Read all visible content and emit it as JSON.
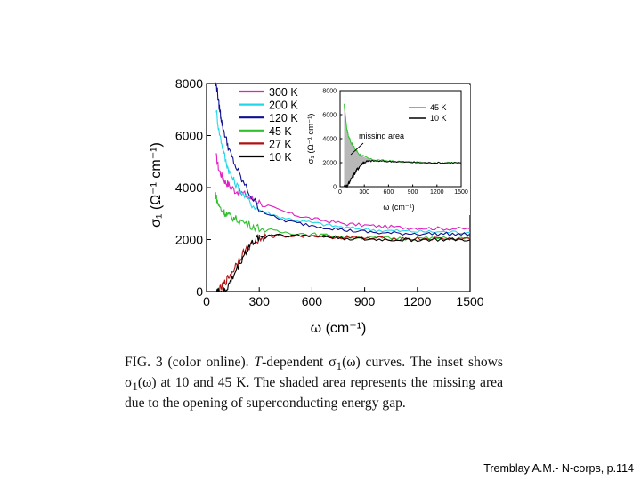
{
  "chart_data": [
    {
      "type": "line",
      "xlabel": "ω (cm⁻¹)",
      "ylabel": "σ₁ (Ω⁻¹ cm⁻¹)",
      "xlim": [
        0,
        1500
      ],
      "ylim": [
        0,
        8000
      ],
      "xticks": [
        0,
        300,
        600,
        900,
        1200,
        1500
      ],
      "yticks": [
        0,
        2000,
        4000,
        6000,
        8000
      ],
      "legend_position": "top-left inside",
      "series": [
        {
          "name": "300 K",
          "color": "#e020c0",
          "x": [
            55,
            70,
            90,
            110,
            130,
            160,
            200,
            250,
            300,
            400,
            500,
            600,
            700,
            800,
            900,
            1000,
            1100,
            1200,
            1300,
            1400,
            1500
          ],
          "y": [
            5200,
            4700,
            4400,
            4200,
            4100,
            3900,
            3800,
            3600,
            3450,
            3150,
            2950,
            2800,
            2700,
            2600,
            2550,
            2500,
            2470,
            2450,
            2430,
            2420,
            2410
          ]
        },
        {
          "name": "200 K",
          "color": "#20d8e8",
          "x": [
            55,
            70,
            90,
            110,
            130,
            160,
            200,
            250,
            300,
            400,
            500,
            600,
            700,
            800,
            900,
            1000,
            1100,
            1200,
            1300,
            1400,
            1500
          ],
          "y": [
            7000,
            6200,
            5600,
            5000,
            4600,
            4200,
            3800,
            3400,
            3150,
            2900,
            2750,
            2650,
            2550,
            2450,
            2400,
            2350,
            2330,
            2310,
            2300,
            2290,
            2280
          ]
        },
        {
          "name": "120 K",
          "color": "#101090",
          "x": [
            50,
            60,
            70,
            80,
            90,
            110,
            130,
            160,
            200,
            250,
            300,
            400,
            500,
            600,
            700,
            800,
            900,
            1000,
            1100,
            1200,
            1300,
            1400,
            1500
          ],
          "y": [
            8000,
            7800,
            7200,
            6800,
            6400,
            5900,
            5400,
            4900,
            4300,
            3700,
            3200,
            2800,
            2650,
            2550,
            2450,
            2350,
            2300,
            2250,
            2240,
            2230,
            2220,
            2210,
            2200
          ]
        },
        {
          "name": "45 K",
          "color": "#30c030",
          "x": [
            50,
            60,
            70,
            90,
            110,
            130,
            160,
            200,
            250,
            300,
            400,
            500,
            600,
            700,
            800,
            900,
            1000,
            1100,
            1200,
            1300,
            1400,
            1500
          ],
          "y": [
            3800,
            3500,
            3300,
            3100,
            3000,
            2900,
            2800,
            2700,
            2550,
            2450,
            2300,
            2250,
            2200,
            2150,
            2100,
            2080,
            2060,
            2050,
            2050,
            2040,
            2040,
            2040
          ]
        },
        {
          "name": "27 K",
          "color": "#b01010",
          "x": [
            60,
            80,
            100,
            120,
            150,
            180,
            210,
            250,
            300,
            350,
            400,
            500,
            600,
            700,
            800,
            900,
            1000,
            1100,
            1200,
            1300,
            1400,
            1500
          ],
          "y": [
            0,
            100,
            300,
            500,
            800,
            1200,
            1500,
            1800,
            2000,
            2100,
            2150,
            2150,
            2150,
            2100,
            2080,
            2050,
            2040,
            2030,
            2030,
            2030,
            2030,
            2030
          ]
        },
        {
          "name": "10 K",
          "color": "#000000",
          "x": [
            50,
            70,
            90,
            110,
            130,
            160,
            190,
            220,
            250,
            280,
            300,
            350,
            400,
            500,
            600,
            700,
            800,
            900,
            1000,
            1100,
            1200,
            1300,
            1400,
            1500
          ],
          "y": [
            0,
            0,
            0,
            50,
            300,
            700,
            1100,
            1500,
            1800,
            2000,
            2100,
            2150,
            2200,
            2150,
            2150,
            2100,
            2050,
            2000,
            2000,
            1990,
            1990,
            1990,
            1990,
            1990
          ]
        }
      ]
    },
    {
      "type": "line",
      "inset": true,
      "xlabel": "ω (cm⁻¹)",
      "ylabel": "σ₁ (Ω⁻¹ cm⁻¹)",
      "xlim": [
        0,
        1500
      ],
      "ylim": [
        0,
        8000
      ],
      "xticks": [
        0,
        300,
        600,
        900,
        1200,
        1500
      ],
      "yticks": [
        0,
        2000,
        4000,
        6000,
        8000
      ],
      "annotation": "missing area",
      "shaded_area": "between 10 K and 45 K curves",
      "series": [
        {
          "name": "45 K",
          "color": "#30c030",
          "x": [
            50,
            60,
            70,
            80,
            100,
            130,
            160,
            200,
            250,
            300,
            400,
            500,
            600,
            700,
            800,
            900,
            1000,
            1100,
            1200,
            1300,
            1400,
            1500
          ],
          "y": [
            6800,
            6300,
            5700,
            5000,
            4300,
            3800,
            3400,
            3000,
            2650,
            2450,
            2250,
            2200,
            2150,
            2100,
            2050,
            2050,
            2020,
            2000,
            2000,
            2000,
            2000,
            2000
          ]
        },
        {
          "name": "10 K",
          "color": "#000000",
          "x": [
            50,
            70,
            90,
            110,
            130,
            160,
            190,
            220,
            250,
            280,
            300,
            350,
            400,
            500,
            600,
            700,
            800,
            900,
            1000,
            1100,
            1200,
            1300,
            1400,
            1500
          ],
          "y": [
            0,
            0,
            100,
            300,
            600,
            900,
            1200,
            1500,
            1750,
            1950,
            2050,
            2100,
            2150,
            2120,
            2100,
            2080,
            2050,
            2020,
            2000,
            1990,
            1990,
            1990,
            1990,
            1990
          ]
        }
      ]
    }
  ],
  "caption": {
    "part1": "FIG. 3 (color online).   ",
    "part2": "T",
    "part3": "-dependent σ",
    "part4": "1",
    "part5": "(ω) curves. The inset shows σ",
    "part6": "1",
    "part7": "(ω) at 10 and 45 K. The shaded area represents the missing area due to the opening of superconducting energy gap."
  },
  "credit": "Tremblay A.M.- N-corps, p.114"
}
